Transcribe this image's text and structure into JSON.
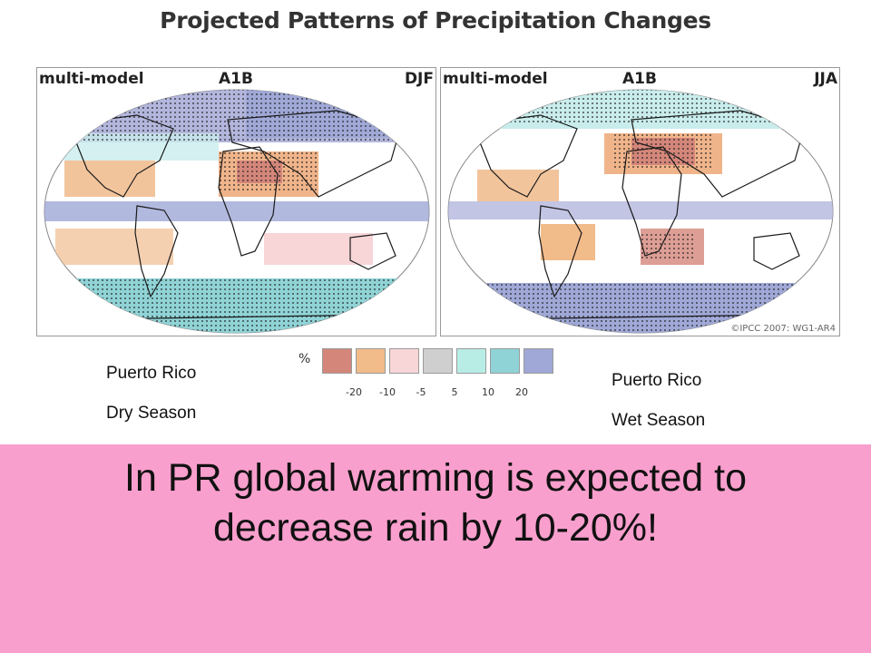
{
  "title": "Projected Patterns of Precipitation Changes",
  "maps": [
    {
      "model": "multi-model",
      "scenario": "A1B",
      "season": "DJF"
    },
    {
      "model": "multi-model",
      "scenario": "A1B",
      "season": "JJA"
    }
  ],
  "credit": "©IPCC 2007: WG1-AR4",
  "legend": {
    "unit": "%",
    "ticks": [
      "-20",
      "-10",
      "-5",
      "5",
      "10",
      "20"
    ],
    "colors": [
      "#d4867a",
      "#f2bb8a",
      "#f8d6d8",
      "#cfcfcf",
      "#b8ede6",
      "#8fd3d6",
      "#9fa8d6"
    ]
  },
  "labels": {
    "left_place": "Puerto Rico",
    "left_season": "Dry Season",
    "right_place": "Puerto Rico",
    "right_season": "Wet Season"
  },
  "message": {
    "line1": "In PR global warming is expected to",
    "line2": "decrease rain by 10-20%!"
  },
  "colors": {
    "banner": "#f99fcd",
    "ocean": "#ffffff",
    "land_outline": "#1a1a1a"
  }
}
